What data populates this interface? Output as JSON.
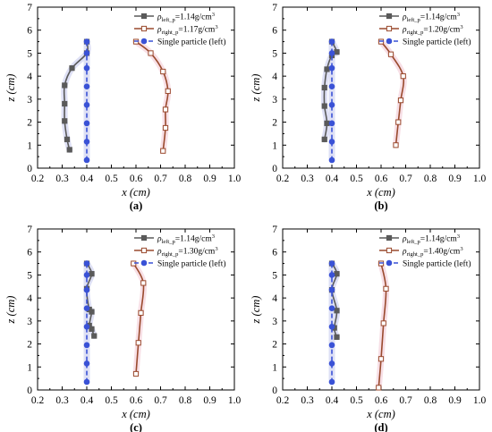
{
  "chart_data": [
    {
      "type": "line",
      "panel_label": "(a)",
      "xlabel": "x (cm)",
      "ylabel": "z (cm)",
      "xlim": [
        0.2,
        1.0
      ],
      "ylim": [
        0,
        7
      ],
      "xticks": [
        "0.2",
        "0.3",
        "0.4",
        "0.5",
        "0.6",
        "0.7",
        "0.8",
        "0.9",
        "1.0"
      ],
      "yticks": [
        "0",
        "1",
        "2",
        "3",
        "4",
        "5",
        "6",
        "7"
      ],
      "legend_position": "top-right",
      "series": [
        {
          "label": "ρleft_p=1.14g/cm3",
          "name_main": "ρ",
          "name_sub": "left_p",
          "name_val": "=1.14g/cm",
          "name_sup": "3",
          "style": "grey-square",
          "points": [
            [
              0.4,
              5.5
            ],
            [
              0.4,
              5.0
            ],
            [
              0.34,
              4.35
            ],
            [
              0.31,
              3.6
            ],
            [
              0.31,
              2.8
            ],
            [
              0.31,
              2.05
            ],
            [
              0.32,
              1.25
            ],
            [
              0.33,
              0.8
            ]
          ]
        },
        {
          "label": "ρright_p=1.17g/cm3",
          "name_main": "ρ",
          "name_sub": "right_p",
          "name_val": "=1.17g/cm",
          "name_sup": "3",
          "style": "brown-open-square",
          "points": [
            [
              0.6,
              5.5
            ],
            [
              0.66,
              5.0
            ],
            [
              0.71,
              4.2
            ],
            [
              0.73,
              3.35
            ],
            [
              0.72,
              2.55
            ],
            [
              0.72,
              1.75
            ],
            [
              0.71,
              0.75
            ]
          ]
        },
        {
          "label": "Single particle (left)",
          "name_main": "Single particle (left)",
          "style": "blue-dashed-circle",
          "points": [
            [
              0.4,
              5.5
            ],
            [
              0.4,
              5.0
            ],
            [
              0.4,
              4.35
            ],
            [
              0.4,
              3.55
            ],
            [
              0.4,
              2.75
            ],
            [
              0.4,
              1.95
            ],
            [
              0.4,
              1.15
            ],
            [
              0.4,
              0.35
            ]
          ]
        }
      ]
    },
    {
      "type": "line",
      "panel_label": "(b)",
      "xlabel": "x (cm)",
      "ylabel": "z (cm)",
      "xlim": [
        0.2,
        1.0
      ],
      "ylim": [
        0,
        7
      ],
      "xticks": [
        "0.2",
        "0.3",
        "0.4",
        "0.5",
        "0.6",
        "0.7",
        "0.8",
        "0.9",
        "1.0"
      ],
      "yticks": [
        "0",
        "1",
        "2",
        "3",
        "4",
        "5",
        "6",
        "7"
      ],
      "legend_position": "top-right",
      "series": [
        {
          "label": "ρleft_p=1.14g/cm3",
          "name_main": "ρ",
          "name_sub": "left_p",
          "name_val": "=1.14g/cm",
          "name_sup": "3",
          "style": "grey-square",
          "points": [
            [
              0.4,
              5.5
            ],
            [
              0.42,
              5.05
            ],
            [
              0.4,
              4.9
            ],
            [
              0.38,
              4.3
            ],
            [
              0.37,
              3.5
            ],
            [
              0.37,
              2.7
            ],
            [
              0.38,
              1.95
            ],
            [
              0.37,
              1.25
            ]
          ]
        },
        {
          "label": "ρright_p=1.20g/cm3",
          "name_main": "ρ",
          "name_sub": "right_p",
          "name_val": "=1.20g/cm",
          "name_sup": "3",
          "style": "brown-open-square",
          "points": [
            [
              0.6,
              5.5
            ],
            [
              0.64,
              4.95
            ],
            [
              0.69,
              4.0
            ],
            [
              0.68,
              2.95
            ],
            [
              0.67,
              2.0
            ],
            [
              0.66,
              1.0
            ]
          ]
        },
        {
          "label": "Single particle (left)",
          "name_main": "Single particle (left)",
          "style": "blue-dashed-circle",
          "points": [
            [
              0.4,
              5.5
            ],
            [
              0.4,
              5.0
            ],
            [
              0.4,
              4.35
            ],
            [
              0.4,
              3.55
            ],
            [
              0.4,
              2.75
            ],
            [
              0.4,
              1.95
            ],
            [
              0.4,
              1.15
            ],
            [
              0.4,
              0.35
            ]
          ]
        }
      ]
    },
    {
      "type": "line",
      "panel_label": "(c)",
      "xlabel": "x (cm)",
      "ylabel": "z (cm)",
      "xlim": [
        0.2,
        1.0
      ],
      "ylim": [
        0,
        7
      ],
      "xticks": [
        "0.2",
        "0.3",
        "0.4",
        "0.5",
        "0.6",
        "0.7",
        "0.8",
        "0.9",
        "1.0"
      ],
      "yticks": [
        "0",
        "1",
        "2",
        "3",
        "4",
        "5",
        "6",
        "7"
      ],
      "legend_position": "top-right",
      "series": [
        {
          "label": "ρleft_p=1.14g/cm3",
          "name_main": "ρ",
          "name_sub": "left_p",
          "name_val": "=1.14g/cm",
          "name_sup": "3",
          "style": "grey-square",
          "points": [
            [
              0.4,
              5.5
            ],
            [
              0.42,
              5.05
            ],
            [
              0.4,
              4.4
            ],
            [
              0.41,
              3.5
            ],
            [
              0.42,
              3.4
            ],
            [
              0.41,
              2.8
            ],
            [
              0.42,
              2.65
            ],
            [
              0.43,
              2.35
            ]
          ]
        },
        {
          "label": "ρright_p=1.30g/cm3",
          "name_main": "ρ",
          "name_sub": "right_p",
          "name_val": "=1.30g/cm",
          "name_sup": "3",
          "style": "brown-open-square",
          "points": [
            [
              0.59,
              5.5
            ],
            [
              0.63,
              4.65
            ],
            [
              0.62,
              3.35
            ],
            [
              0.61,
              2.05
            ],
            [
              0.6,
              0.7
            ]
          ]
        },
        {
          "label": "Single particle (left)",
          "name_main": "Single particle (left)",
          "style": "blue-dashed-circle",
          "points": [
            [
              0.4,
              5.5
            ],
            [
              0.4,
              5.0
            ],
            [
              0.4,
              4.35
            ],
            [
              0.4,
              3.55
            ],
            [
              0.4,
              2.75
            ],
            [
              0.4,
              1.95
            ],
            [
              0.4,
              1.15
            ],
            [
              0.4,
              0.35
            ]
          ]
        }
      ]
    },
    {
      "type": "line",
      "panel_label": "(d)",
      "xlabel": "x (cm)",
      "ylabel": "z (cm)",
      "xlim": [
        0.2,
        1.0
      ],
      "ylim": [
        0,
        7
      ],
      "xticks": [
        "0.2",
        "0.3",
        "0.4",
        "0.5",
        "0.6",
        "0.7",
        "0.8",
        "0.9",
        "1.0"
      ],
      "yticks": [
        "0",
        "1",
        "2",
        "3",
        "4",
        "5",
        "6",
        "7"
      ],
      "legend_position": "top-right",
      "series": [
        {
          "label": "ρleft_p=1.14g/cm3",
          "name_main": "ρ",
          "name_sub": "left_p",
          "name_val": "=1.14g/cm",
          "name_sup": "3",
          "style": "grey-square",
          "points": [
            [
              0.4,
              5.5
            ],
            [
              0.42,
              5.05
            ],
            [
              0.4,
              4.35
            ],
            [
              0.42,
              3.45
            ],
            [
              0.41,
              2.7
            ],
            [
              0.42,
              2.3
            ]
          ]
        },
        {
          "label": "ρright_p=1.40g/cm3",
          "name_main": "ρ",
          "name_sub": "right_p",
          "name_val": "=1.40g/cm",
          "name_sup": "3",
          "style": "brown-open-square",
          "points": [
            [
              0.6,
              5.5
            ],
            [
              0.62,
              4.4
            ],
            [
              0.61,
              2.9
            ],
            [
              0.6,
              1.35
            ],
            [
              0.59,
              0.1
            ]
          ]
        },
        {
          "label": "Single particle (left)",
          "name_main": "Single particle (left)",
          "style": "blue-dashed-circle",
          "points": [
            [
              0.4,
              5.5
            ],
            [
              0.4,
              5.0
            ],
            [
              0.4,
              4.35
            ],
            [
              0.4,
              3.55
            ],
            [
              0.4,
              2.75
            ],
            [
              0.4,
              1.95
            ],
            [
              0.4,
              1.15
            ],
            [
              0.4,
              0.35
            ]
          ]
        }
      ]
    }
  ],
  "colors": {
    "grey_series": "#5a5a5a",
    "brown_series": "#9a4a2e",
    "blue_series": "#3a52d6",
    "shadow_blue": "#c4c8ee",
    "shadow_pink": "#f2c6d2"
  }
}
